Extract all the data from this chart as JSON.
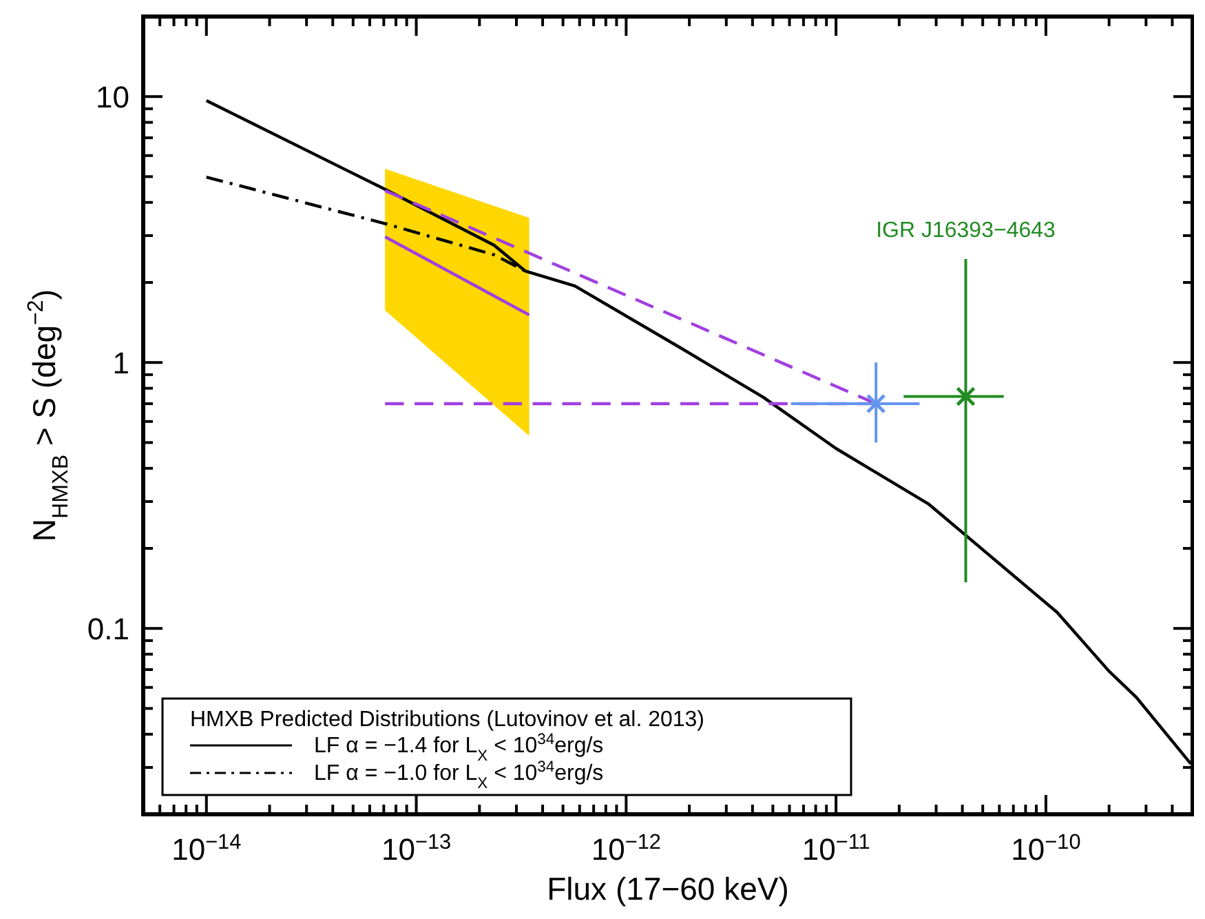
{
  "chart_data": {
    "type": "line",
    "xlabel": "Flux (17−60 keV)",
    "ylabel": "N$_{HMXB}$ > S (deg$^{−2}$)",
    "legend_title": "HMXB Predicted Distributions (Lutovinov et al. 2013)",
    "legend": "bottom left",
    "log": "xy",
    "xlim": [
      5e-15,
      5e-10
    ],
    "ylim": [
      0.02,
      20
    ],
    "xticks": [
      {
        "value": 5e-15,
        "label": null
      },
      {
        "value": 6e-15,
        "label": null
      },
      {
        "value": 7e-15,
        "label": null
      },
      {
        "value": 8e-15,
        "label": null
      },
      {
        "value": 9e-15,
        "label": null
      },
      {
        "value": 1e-14,
        "label": "10$^{−14}$"
      },
      {
        "value": 2e-14,
        "label": null
      },
      {
        "value": 3e-14,
        "label": null
      },
      {
        "value": 4e-14,
        "label": null
      },
      {
        "value": 5e-14,
        "label": null
      },
      {
        "value": 6e-14,
        "label": null
      },
      {
        "value": 7e-14,
        "label": null
      },
      {
        "value": 8e-14,
        "label": null
      },
      {
        "value": 9e-14,
        "label": null
      },
      {
        "value": 1e-13,
        "label": "10$^{−13}$"
      },
      {
        "value": 2e-13,
        "label": null
      },
      {
        "value": 3e-13,
        "label": null
      },
      {
        "value": 4e-13,
        "label": null
      },
      {
        "value": 5e-13,
        "label": null
      },
      {
        "value": 6e-13,
        "label": null
      },
      {
        "value": 7e-13,
        "label": null
      },
      {
        "value": 8e-13,
        "label": null
      },
      {
        "value": 9e-13,
        "label": null
      },
      {
        "value": 1e-12,
        "label": "10$^{−12}$"
      },
      {
        "value": 2e-12,
        "label": null
      },
      {
        "value": 3e-12,
        "label": null
      },
      {
        "value": 4e-12,
        "label": null
      },
      {
        "value": 5e-12,
        "label": null
      },
      {
        "value": 6e-12,
        "label": null
      },
      {
        "value": 7e-12,
        "label": null
      },
      {
        "value": 8e-12,
        "label": null
      },
      {
        "value": 9e-12,
        "label": null
      },
      {
        "value": 1e-11,
        "label": "10$^{−11}$"
      },
      {
        "value": 2e-11,
        "label": null
      },
      {
        "value": 3e-11,
        "label": null
      },
      {
        "value": 4e-11,
        "label": null
      },
      {
        "value": 5e-11,
        "label": null
      },
      {
        "value": 6e-11,
        "label": null
      },
      {
        "value": 7e-11,
        "label": null
      },
      {
        "value": 8e-11,
        "label": null
      },
      {
        "value": 9e-11,
        "label": null
      },
      {
        "value": 1e-10,
        "label": "10$^{−10}$"
      },
      {
        "value": 2e-10,
        "label": null
      },
      {
        "value": 3e-10,
        "label": null
      },
      {
        "value": 4e-10,
        "label": null
      }
    ],
    "yticks": [
      {
        "value": 0.03,
        "label": null
      },
      {
        "value": 0.04,
        "label": null
      },
      {
        "value": 0.05,
        "label": null
      },
      {
        "value": 0.06,
        "label": null
      },
      {
        "value": 0.07,
        "label": null
      },
      {
        "value": 0.08,
        "label": null
      },
      {
        "value": 0.09,
        "label": null
      },
      0.1,
      {
        "value": 0.2,
        "label": null
      },
      {
        "value": 0.3,
        "label": null
      },
      {
        "value": 0.4,
        "label": null
      },
      {
        "value": 0.5,
        "label": null
      },
      {
        "value": 0.6,
        "label": null
      },
      {
        "value": 0.7,
        "label": null
      },
      {
        "value": 0.8,
        "label": null
      },
      {
        "value": 0.9,
        "label": null
      },
      1,
      {
        "value": 2,
        "label": null
      },
      {
        "value": 3,
        "label": null
      },
      {
        "value": 4,
        "label": null
      },
      {
        "value": 5,
        "label": null
      },
      {
        "value": 6,
        "label": null
      },
      {
        "value": 7,
        "label": null
      },
      {
        "value": 8,
        "label": null
      },
      {
        "value": 9,
        "label": null
      },
      10
    ],
    "series": [
      {
        "name": "LF α = −1.4 for L$_{X}$ < 10$^{34}$erg/s",
        "color": "#000000",
        "line_style": "solid",
        "x": [
          1e-14,
          7.1e-14,
          2.35e-13,
          3.3e-13,
          5.7e-13,
          1.8e-12,
          4.5e-12,
          1e-11,
          2.77e-11,
          1.13e-10,
          2e-10,
          2.7e-10,
          4.9e-10
        ],
        "values": [
          9.66,
          4.48,
          2.76,
          2.21,
          1.94,
          1.14,
          0.74,
          0.475,
          0.293,
          0.115,
          0.069,
          0.055,
          0.031
        ]
      },
      {
        "name": "LF α = −1.0 for L$_{X}$ < 10$^{34}$erg/s",
        "color": "#000000",
        "line_style": "dashdot",
        "x": [
          1e-14,
          7.1e-14,
          2.35e-13,
          3.3e-13
        ],
        "values": [
          4.98,
          3.33,
          2.54,
          2.21
        ]
      },
      {
        "color": "#ffd700",
        "x": [
          7.1e-14,
          3.45e-13
        ],
        "values": [
          null,
          null
        ],
        "lower": [
          1.57,
          0.53
        ],
        "upper": [
          5.35,
          3.5
        ]
      },
      {
        "color": "#a040e0",
        "line_style": "solid",
        "x": [
          7.1e-14,
          3.45e-13
        ],
        "values": [
          2.97,
          1.51
        ]
      },
      {
        "color": "#a040e0",
        "line_style": "dashed",
        "x": [
          7.1e-14,
          1.55e-11
        ],
        "values": [
          4.43,
          0.7
        ]
      },
      {
        "color": "#a040e0",
        "line_style": "dashed",
        "x": [
          7.1e-14,
          1.55e-11
        ],
        "values": [
          0.7,
          0.7
        ]
      },
      {
        "type": "scatter",
        "color": "#6495ed",
        "marker": "cross",
        "x": [
          1.55e-11
        ],
        "values": [
          0.7
        ],
        "errors": [
          [
            0.5,
            1.0
          ]
        ],
        "xerrors": [
          [
            6.1e-12,
            2.5e-11
          ]
        ]
      },
      {
        "type": "scatter",
        "name": "IGR J16393−4643",
        "color": "#228b22",
        "marker": "cross",
        "x": [
          4.15e-11
        ],
        "values": [
          0.745
        ],
        "errors": [
          [
            0.149,
            2.45
          ]
        ],
        "xerrors": [
          [
            2.1e-11,
            6.3e-11
          ]
        ]
      }
    ]
  }
}
